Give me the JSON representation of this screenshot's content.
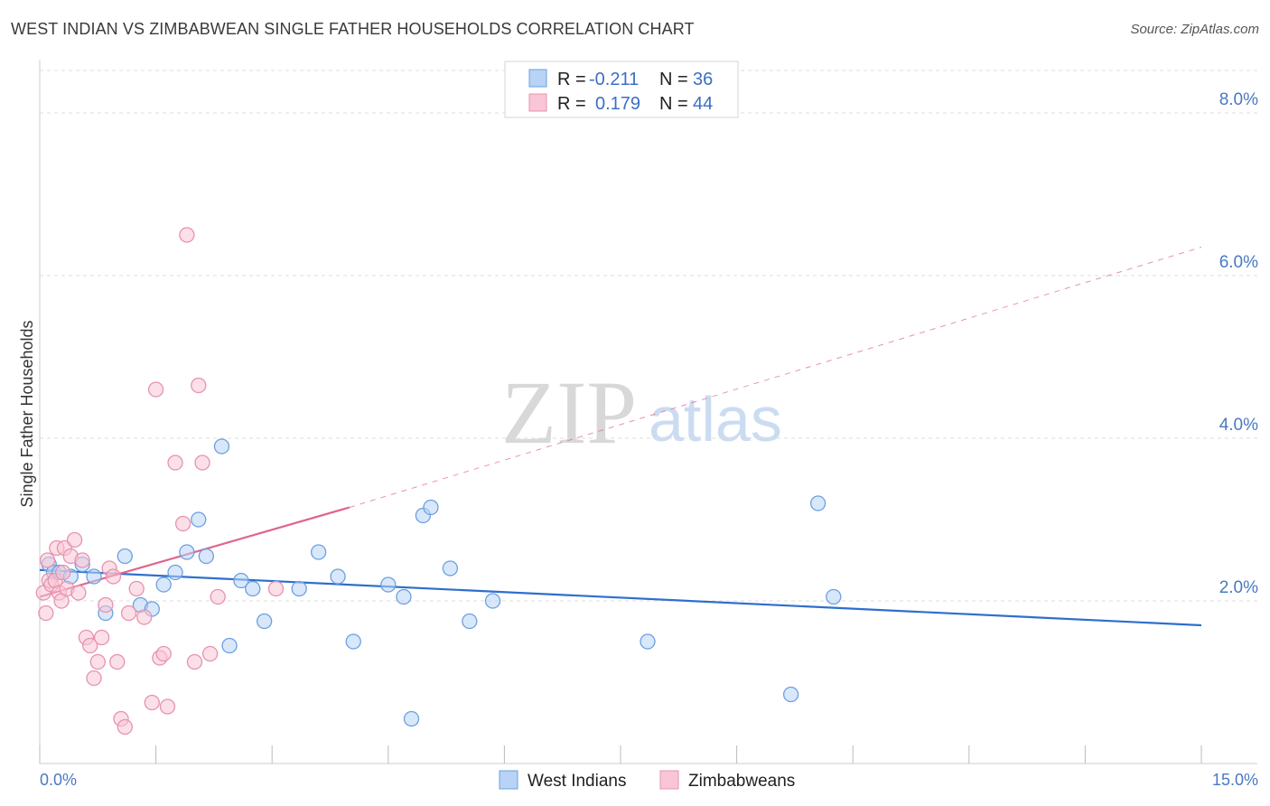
{
  "title": "WEST INDIAN VS ZIMBABWEAN SINGLE FATHER HOUSEHOLDS CORRELATION CHART",
  "source": "Source: ZipAtlas.com",
  "watermark": {
    "zip": "ZIP",
    "atlas": "atlas"
  },
  "legend": {
    "rows": [
      {
        "r_label": "R =",
        "r_value": "-0.211",
        "n_label": "N =",
        "n_value": "36"
      },
      {
        "r_label": "R =",
        "r_value": "0.179",
        "n_label": "N =",
        "n_value": "44"
      }
    ]
  },
  "bottom_legend": [
    "West Indians",
    "Zimbabweans"
  ],
  "colors": {
    "blue_fill": "#b8d3f5",
    "blue_stroke": "#6c9fe0",
    "blue_line": "#2e6fcd",
    "pink_fill": "#f8c6d6",
    "pink_stroke": "#e891ae",
    "pink_line": "#e0648e",
    "tick_text": "#4a78c2",
    "grid": "#dddddd"
  },
  "chart_data": {
    "type": "scatter",
    "title": "WEST INDIAN VS ZIMBABWEAN SINGLE FATHER HOUSEHOLDS CORRELATION CHART",
    "xlabel": "",
    "ylabel": "Single Father Households",
    "xlim": [
      0,
      15
    ],
    "ylim": [
      0,
      8.5
    ],
    "y_ticks": [
      {
        "value": 2,
        "label": "2.0%"
      },
      {
        "value": 4,
        "label": "4.0%"
      },
      {
        "value": 6,
        "label": "6.0%"
      },
      {
        "value": 8,
        "label": "8.0%"
      }
    ],
    "x_tick_labels": [
      {
        "value": 0,
        "label": "0.0%"
      },
      {
        "value": 15,
        "label": "15.0%"
      }
    ],
    "x_minor_ticks": [
      0,
      1.5,
      3,
      4.5,
      6,
      7.5,
      9,
      10.5,
      12,
      13.5,
      15
    ],
    "grid": true,
    "legend_position": "top-center",
    "series": [
      {
        "name": "West Indians",
        "color": "#b8d3f5",
        "points": [
          [
            0.12,
            2.45
          ],
          [
            0.18,
            2.35
          ],
          [
            0.25,
            2.35
          ],
          [
            0.4,
            2.3
          ],
          [
            0.55,
            2.45
          ],
          [
            0.7,
            2.3
          ],
          [
            0.85,
            1.85
          ],
          [
            1.1,
            2.55
          ],
          [
            1.3,
            1.95
          ],
          [
            1.45,
            1.9
          ],
          [
            1.6,
            2.2
          ],
          [
            1.75,
            2.35
          ],
          [
            1.9,
            2.6
          ],
          [
            2.05,
            3.0
          ],
          [
            2.15,
            2.55
          ],
          [
            2.35,
            3.9
          ],
          [
            2.45,
            1.45
          ],
          [
            2.6,
            2.25
          ],
          [
            2.75,
            2.15
          ],
          [
            2.9,
            1.75
          ],
          [
            3.35,
            2.15
          ],
          [
            3.6,
            2.6
          ],
          [
            3.85,
            2.3
          ],
          [
            4.05,
            1.5
          ],
          [
            4.5,
            2.2
          ],
          [
            4.7,
            2.05
          ],
          [
            4.8,
            0.55
          ],
          [
            4.95,
            3.05
          ],
          [
            5.05,
            3.15
          ],
          [
            5.3,
            2.4
          ],
          [
            5.55,
            1.75
          ],
          [
            5.85,
            2.0
          ],
          [
            7.85,
            1.5
          ],
          [
            9.7,
            0.85
          ],
          [
            10.05,
            3.2
          ],
          [
            10.25,
            2.05
          ]
        ]
      },
      {
        "name": "Zimbabweans",
        "color": "#f8c6d6",
        "points": [
          [
            0.05,
            2.1
          ],
          [
            0.08,
            1.85
          ],
          [
            0.1,
            2.5
          ],
          [
            0.12,
            2.25
          ],
          [
            0.15,
            2.2
          ],
          [
            0.2,
            2.25
          ],
          [
            0.22,
            2.65
          ],
          [
            0.25,
            2.1
          ],
          [
            0.28,
            2.0
          ],
          [
            0.3,
            2.35
          ],
          [
            0.32,
            2.65
          ],
          [
            0.35,
            2.15
          ],
          [
            0.4,
            2.55
          ],
          [
            0.45,
            2.75
          ],
          [
            0.5,
            2.1
          ],
          [
            0.55,
            2.5
          ],
          [
            0.6,
            1.55
          ],
          [
            0.65,
            1.45
          ],
          [
            0.7,
            1.05
          ],
          [
            0.75,
            1.25
          ],
          [
            0.8,
            1.55
          ],
          [
            0.85,
            1.95
          ],
          [
            0.9,
            2.4
          ],
          [
            0.95,
            2.3
          ],
          [
            1.0,
            1.25
          ],
          [
            1.05,
            0.55
          ],
          [
            1.1,
            0.45
          ],
          [
            1.15,
            1.85
          ],
          [
            1.25,
            2.15
          ],
          [
            1.35,
            1.8
          ],
          [
            1.45,
            0.75
          ],
          [
            1.5,
            4.6
          ],
          [
            1.55,
            1.3
          ],
          [
            1.6,
            1.35
          ],
          [
            1.65,
            0.7
          ],
          [
            1.75,
            3.7
          ],
          [
            1.85,
            2.95
          ],
          [
            1.9,
            6.5
          ],
          [
            2.0,
            1.25
          ],
          [
            2.05,
            4.65
          ],
          [
            2.1,
            3.7
          ],
          [
            2.2,
            1.35
          ],
          [
            2.3,
            2.05
          ],
          [
            3.05,
            2.15
          ]
        ]
      }
    ],
    "trendlines": [
      {
        "series": "West Indians",
        "from": [
          0,
          2.38
        ],
        "to": [
          15,
          1.7
        ],
        "style": "solid"
      },
      {
        "series": "Zimbabweans",
        "from": [
          0,
          2.05
        ],
        "to": [
          4.0,
          3.15
        ],
        "style": "solid"
      },
      {
        "series": "Zimbabweans",
        "from": [
          4.0,
          3.15
        ],
        "to": [
          15,
          6.35
        ],
        "style": "dashed"
      }
    ]
  }
}
